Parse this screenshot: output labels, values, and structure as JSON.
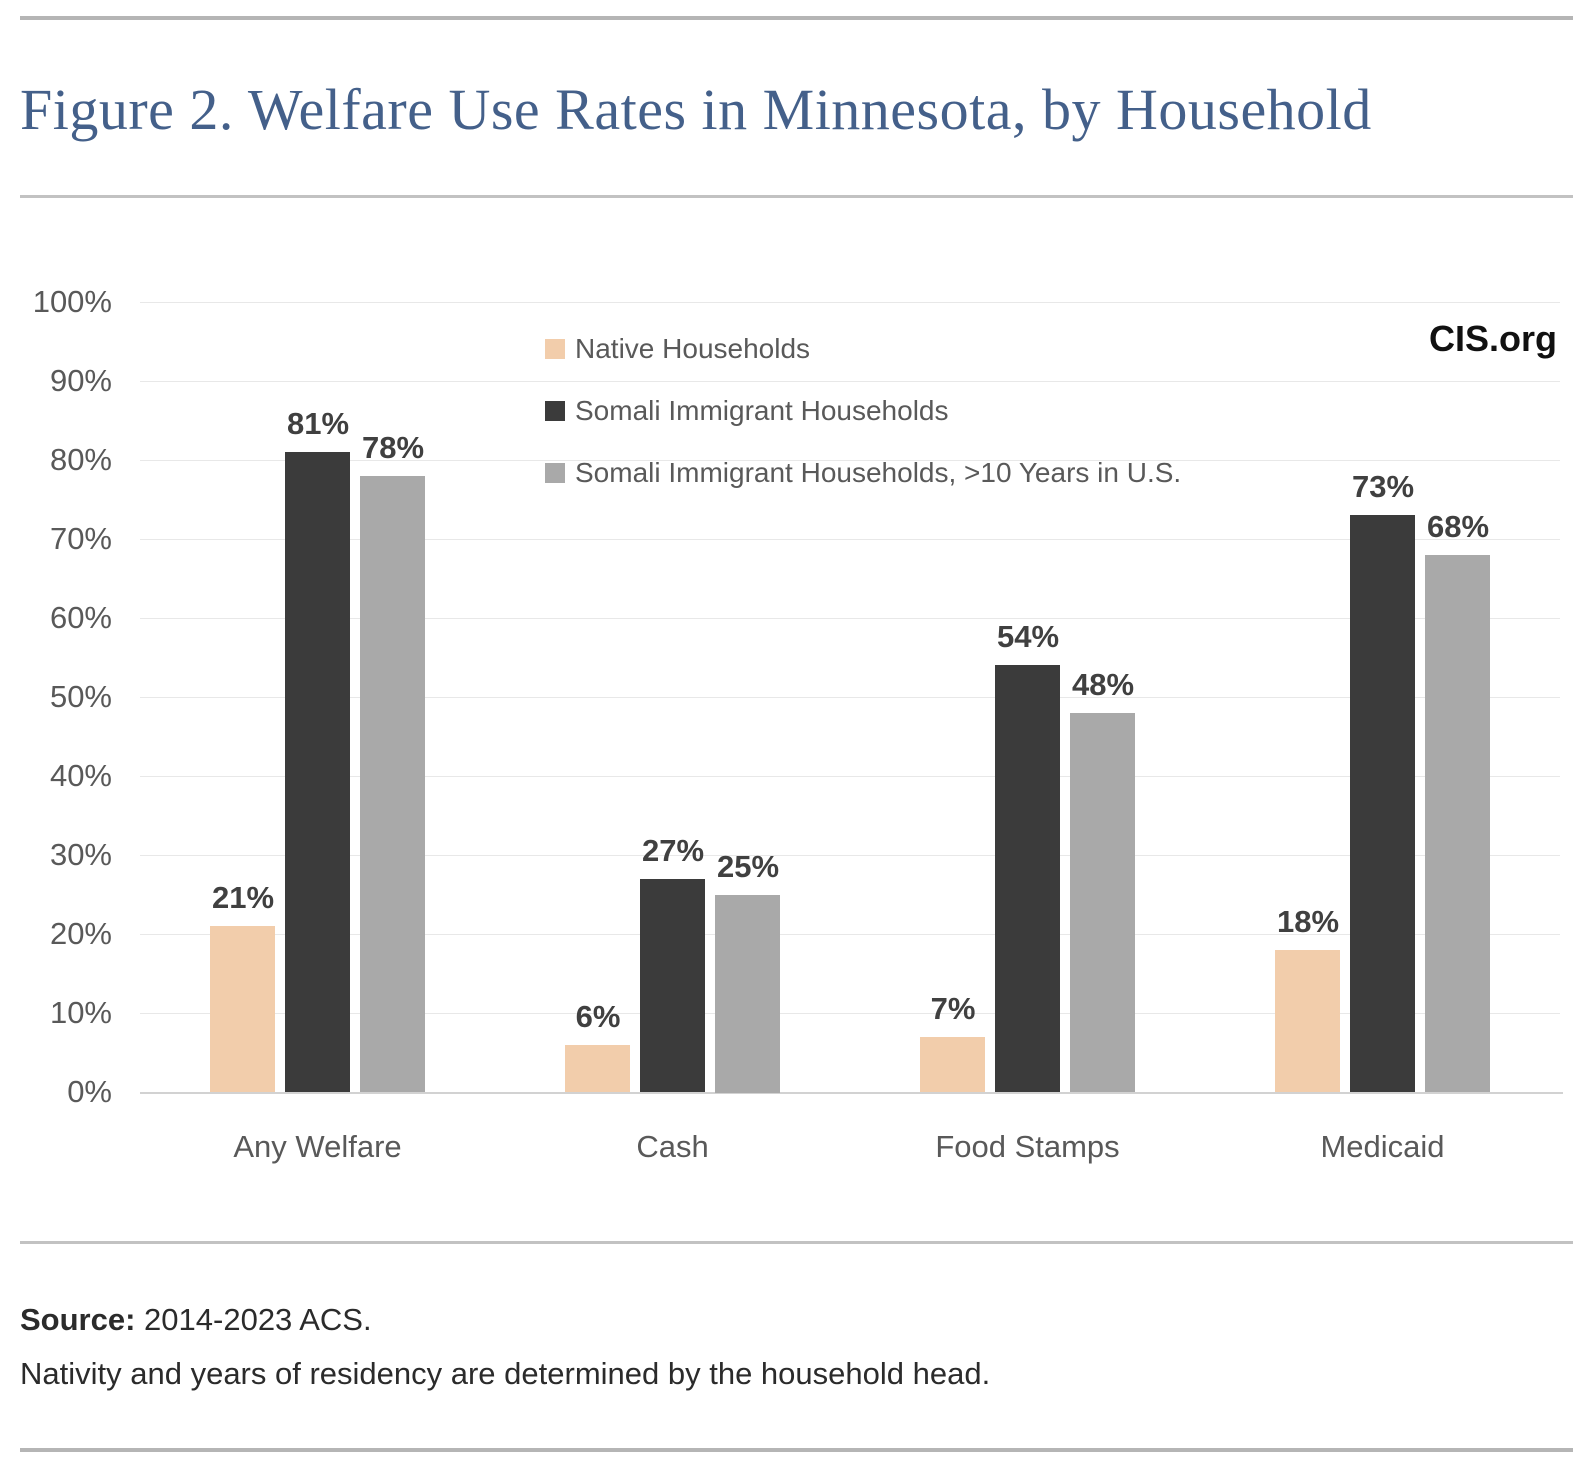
{
  "header": {
    "title": "Figure 2. Welfare Use Rates in Minnesota, by Household"
  },
  "chart": {
    "brand": "CIS.org"
  },
  "chart_data": {
    "type": "bar",
    "title": "Figure 2. Welfare Use Rates in Minnesota, by Household",
    "categories": [
      "Any Welfare",
      "Cash",
      "Food Stamps",
      "Medicaid"
    ],
    "series": [
      {
        "name": "Native Households",
        "color": "#f2cdab",
        "values": [
          21,
          6,
          7,
          18
        ],
        "labels": [
          "21%",
          "6%",
          "7%",
          "18%"
        ]
      },
      {
        "name": "Somali Immigrant Households",
        "color": "#3b3b3b",
        "values": [
          81,
          27,
          54,
          73
        ],
        "labels": [
          "81%",
          "27%",
          "54%",
          "73%"
        ]
      },
      {
        "name": "Somali Immigrant Households, >10 Years in U.S.",
        "color": "#a9a9a9",
        "values": [
          78,
          25,
          48,
          68
        ],
        "labels": [
          "78%",
          "25%",
          "48%",
          "68%"
        ]
      }
    ],
    "value_suffix": "%",
    "xlabel": "",
    "ylabel": "",
    "ylim": [
      0,
      100
    ],
    "ytick_step": 10,
    "ytick_labels": [
      "0%",
      "10%",
      "20%",
      "30%",
      "40%",
      "50%",
      "60%",
      "70%",
      "80%",
      "90%",
      "100%"
    ],
    "grid": true,
    "legend_position": "top-center"
  },
  "footer": {
    "source_label": "Source:",
    "source_text": "2014-2023 ACS.",
    "note": "Nativity and years of residency are determined by the household head."
  }
}
